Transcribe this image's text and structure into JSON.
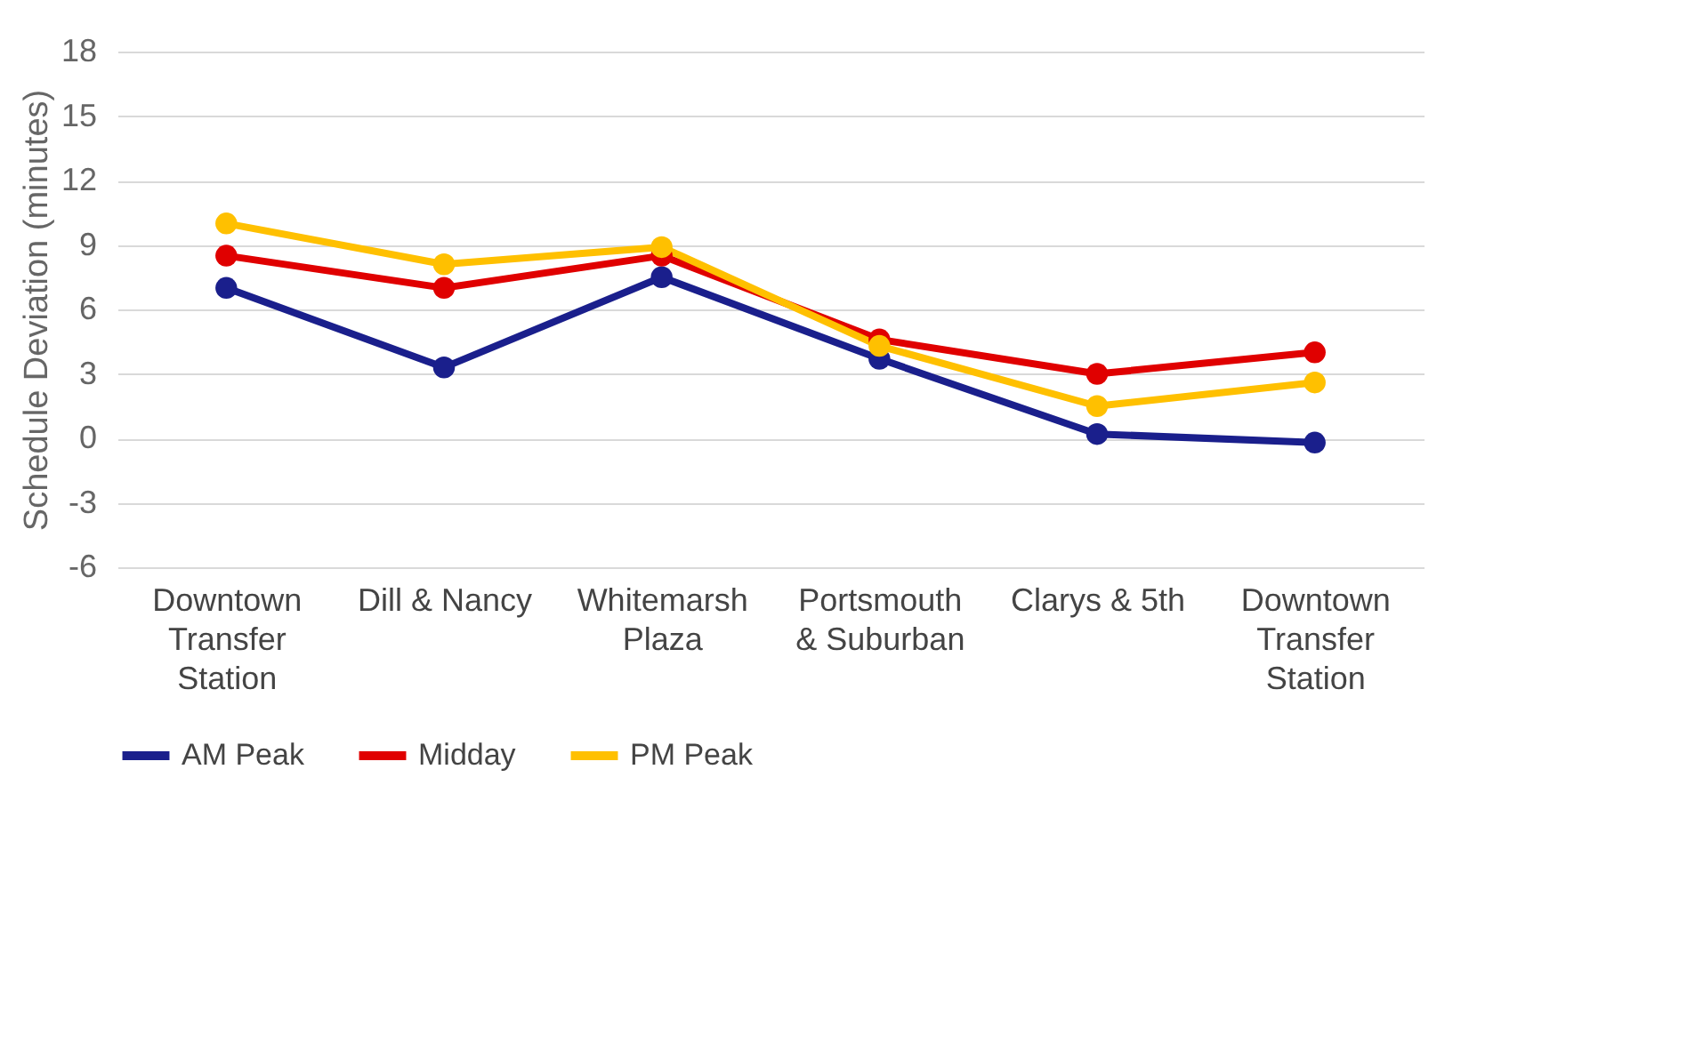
{
  "chart_data": {
    "type": "line",
    "ylabel": "Schedule Deviation (minutes)",
    "categories": [
      "Downtown Transfer Station",
      "Dill & Nancy",
      "Whitemarsh Plaza",
      "Portsmouth & Suburban",
      "Clarys & 5th",
      "Downtown Transfer Station"
    ],
    "series": [
      {
        "name": "AM Peak",
        "color": "#1a1f8c",
        "values": [
          7.0,
          3.3,
          7.5,
          3.7,
          0.2,
          -0.2
        ]
      },
      {
        "name": "Midday",
        "color": "#e00000",
        "values": [
          8.5,
          7.0,
          8.5,
          4.6,
          3.0,
          4.0
        ]
      },
      {
        "name": "PM Peak",
        "color": "#ffc000",
        "values": [
          10.0,
          8.1,
          8.9,
          4.3,
          1.5,
          2.6
        ]
      }
    ],
    "ylim": [
      -6,
      18
    ],
    "yticks": [
      -6,
      -3,
      0,
      3,
      6,
      9,
      12,
      15,
      18
    ],
    "grid": "y",
    "legend": "bottom",
    "marker": "circle",
    "line_style": "solid"
  }
}
